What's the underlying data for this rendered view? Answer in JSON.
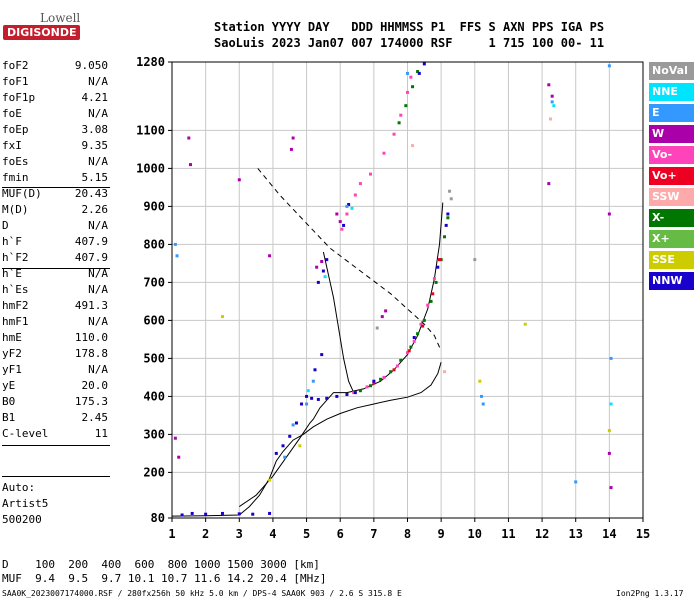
{
  "logo": {
    "lowell": "Lowell",
    "digisonde": "DIGISONDE"
  },
  "header": {
    "row1": "Station YYYY DAY   DDD HHMMSS P1  FFS S AXN PPS IGA PS",
    "row2": "SaoLuis 2023 Jan07 007 174000 RSF     1 715 100 00- 11"
  },
  "params": [
    {
      "name": "foF2",
      "value": "9.050"
    },
    {
      "name": "foF1",
      "value": "N/A"
    },
    {
      "name": "foF1p",
      "value": "4.21"
    },
    {
      "name": "foE",
      "value": "N/A"
    },
    {
      "name": "foEp",
      "value": "3.08"
    },
    {
      "name": "fxI",
      "value": "9.35"
    },
    {
      "name": "foEs",
      "value": "N/A"
    },
    {
      "name": "fmin",
      "value": "5.15"
    },
    {
      "name": "MUF(D)",
      "value": "20.43"
    },
    {
      "name": "M(D)",
      "value": "2.26"
    },
    {
      "name": "D",
      "value": "N/A"
    },
    {
      "name": "h`F",
      "value": "407.9"
    },
    {
      "name": "h`F2",
      "value": "407.9"
    },
    {
      "name": "h`E",
      "value": "N/A"
    },
    {
      "name": "h`Es",
      "value": "N/A"
    },
    {
      "name": "hmF2",
      "value": "491.3"
    },
    {
      "name": "hmF1",
      "value": "N/A"
    },
    {
      "name": "hmE",
      "value": "110.0"
    },
    {
      "name": "yF2",
      "value": "178.8"
    },
    {
      "name": "yF1",
      "value": "N/A"
    },
    {
      "name": "yE",
      "value": "20.0"
    },
    {
      "name": "B0",
      "value": "175.3"
    },
    {
      "name": "B1",
      "value": "2.45"
    },
    {
      "name": "C-level",
      "value": "11"
    }
  ],
  "autoscale": {
    "line1": "Auto:",
    "line2": "Artist5",
    "line3": "500200"
  },
  "legend": [
    {
      "label": "NoVal",
      "color": "#9a9a9a"
    },
    {
      "label": "NNE",
      "color": "#00e5ff"
    },
    {
      "label": "E",
      "color": "#3399ff"
    },
    {
      "label": "W",
      "color": "#aa00aa"
    },
    {
      "label": "Vo-",
      "color": "#ff44bb"
    },
    {
      "label": "Vo+",
      "color": "#ee0022"
    },
    {
      "label": "SSW",
      "color": "#ffaaaa"
    },
    {
      "label": "X-",
      "color": "#007700"
    },
    {
      "label": "X+",
      "color": "#66bb44"
    },
    {
      "label": "SSE",
      "color": "#cccc00"
    },
    {
      "label": "NNW",
      "color": "#1a00cc"
    }
  ],
  "footer": {
    "dist_line": "D    100  200  400  600  800 1000 1500 3000 [km]",
    "muf_line": "MUF  9.4  9.5  9.7 10.1 10.7 11.6 14.2 20.4 [MHz]",
    "file_line": "SAA0K_2023007174000.RSF / 280fx256h 50 kHz 5.0 km / DPS-4 SAA0K 903 / 2.6 S 315.8 E",
    "version": "Ion2Png 1.3.17"
  },
  "chart_data": {
    "type": "scatter",
    "xlim": [
      1,
      15
    ],
    "ylim": [
      80,
      1280
    ],
    "x_ticks": [
      "1",
      "2",
      "3",
      "4",
      "5",
      "6",
      "7",
      "8",
      "9",
      "10",
      "11",
      "12",
      "13",
      "14",
      "15"
    ],
    "y_ticks": [
      "80",
      "200",
      "300",
      "400",
      "500",
      "600",
      "700",
      "800",
      "900",
      "1000",
      "1100",
      "1280"
    ],
    "grid": true,
    "series": [
      {
        "name": "X-",
        "color": "#007700",
        "points": [
          [
            6.6,
            415
          ],
          [
            6.9,
            428
          ],
          [
            7.2,
            445
          ],
          [
            7.5,
            465
          ],
          [
            7.8,
            495
          ],
          [
            8.1,
            530
          ],
          [
            8.3,
            565
          ],
          [
            8.5,
            600
          ],
          [
            8.7,
            650
          ],
          [
            8.85,
            700
          ],
          [
            9.0,
            760
          ],
          [
            9.1,
            820
          ],
          [
            9.2,
            870
          ],
          [
            7.75,
            1120
          ],
          [
            7.95,
            1165
          ],
          [
            8.15,
            1215
          ],
          [
            8.3,
            1255
          ]
        ]
      },
      {
        "name": "Vo-",
        "color": "#ff44bb",
        "points": [
          [
            6.4,
            410
          ],
          [
            6.8,
            425
          ],
          [
            7.3,
            450
          ],
          [
            7.7,
            480
          ],
          [
            8.0,
            515
          ],
          [
            8.2,
            545
          ],
          [
            8.4,
            590
          ],
          [
            8.6,
            640
          ],
          [
            8.8,
            710
          ],
          [
            6.05,
            840
          ],
          [
            6.2,
            880
          ],
          [
            6.45,
            930
          ],
          [
            6.6,
            960
          ],
          [
            6.9,
            985
          ],
          [
            7.3,
            1040
          ],
          [
            7.6,
            1090
          ],
          [
            7.8,
            1140
          ],
          [
            8.0,
            1200
          ],
          [
            8.1,
            1240
          ]
        ]
      },
      {
        "name": "Vo+",
        "color": "#ee0022",
        "points": [
          [
            7.0,
            435
          ],
          [
            7.6,
            470
          ],
          [
            8.05,
            520
          ],
          [
            8.45,
            585
          ],
          [
            8.75,
            670
          ],
          [
            8.95,
            760
          ]
        ]
      },
      {
        "name": "NNW",
        "color": "#1a00cc",
        "points": [
          [
            1.3,
            88
          ],
          [
            1.6,
            92
          ],
          [
            2.0,
            90
          ],
          [
            2.5,
            92
          ],
          [
            3.0,
            91
          ],
          [
            3.4,
            90
          ],
          [
            3.9,
            92
          ],
          [
            4.1,
            250
          ],
          [
            4.3,
            270
          ],
          [
            4.5,
            295
          ],
          [
            4.7,
            330
          ],
          [
            4.85,
            380
          ],
          [
            5.0,
            400
          ],
          [
            5.15,
            395
          ],
          [
            5.35,
            392
          ],
          [
            5.6,
            395
          ],
          [
            5.9,
            400
          ],
          [
            6.2,
            405
          ],
          [
            6.45,
            410
          ],
          [
            7.0,
            440
          ],
          [
            8.2,
            555
          ],
          [
            8.9,
            740
          ],
          [
            9.15,
            850
          ],
          [
            9.2,
            880
          ],
          [
            5.25,
            470
          ],
          [
            5.45,
            510
          ],
          [
            5.35,
            700
          ],
          [
            5.5,
            730
          ],
          [
            5.6,
            760
          ],
          [
            6.1,
            850
          ],
          [
            6.25,
            905
          ],
          [
            8.35,
            1250
          ],
          [
            8.5,
            1275
          ]
        ]
      },
      {
        "name": "W",
        "color": "#aa00aa",
        "points": [
          [
            1.5,
            1080
          ],
          [
            1.55,
            1010
          ],
          [
            4.55,
            1050
          ],
          [
            4.6,
            1080
          ],
          [
            5.3,
            740
          ],
          [
            5.45,
            755
          ],
          [
            5.9,
            880
          ],
          [
            6.0,
            860
          ],
          [
            7.25,
            610
          ],
          [
            7.35,
            625
          ],
          [
            12.2,
            1220
          ],
          [
            12.3,
            1190
          ],
          [
            12.2,
            960
          ],
          [
            14.0,
            880
          ],
          [
            14.0,
            250
          ],
          [
            14.05,
            160
          ],
          [
            1.1,
            290
          ],
          [
            1.2,
            240
          ],
          [
            3.0,
            970
          ],
          [
            3.9,
            770
          ]
        ]
      },
      {
        "name": "E",
        "color": "#3399ff",
        "points": [
          [
            1.1,
            800
          ],
          [
            1.15,
            770
          ],
          [
            4.35,
            240
          ],
          [
            4.6,
            325
          ],
          [
            5.0,
            380
          ],
          [
            5.2,
            440
          ],
          [
            6.2,
            900
          ],
          [
            8.0,
            1250
          ],
          [
            12.3,
            1175
          ],
          [
            14.05,
            500
          ],
          [
            10.2,
            400
          ],
          [
            10.25,
            380
          ],
          [
            13.0,
            175
          ],
          [
            14.0,
            1270
          ]
        ]
      },
      {
        "name": "NNE",
        "color": "#00e5ff",
        "points": [
          [
            5.05,
            415
          ],
          [
            5.55,
            715
          ],
          [
            6.35,
            895
          ],
          [
            12.35,
            1165
          ],
          [
            14.05,
            380
          ]
        ]
      },
      {
        "name": "SSE",
        "color": "#cccc00",
        "points": [
          [
            4.8,
            270
          ],
          [
            3.9,
            180
          ],
          [
            11.5,
            590
          ],
          [
            14.0,
            310
          ],
          [
            10.15,
            440
          ],
          [
            2.5,
            610
          ]
        ]
      },
      {
        "name": "SSW",
        "color": "#ffaaaa",
        "points": [
          [
            8.15,
            1060
          ],
          [
            9.1,
            465
          ],
          [
            12.25,
            1130
          ]
        ]
      },
      {
        "name": "NoVal",
        "color": "#9a9a9a",
        "points": [
          [
            9.25,
            940
          ],
          [
            9.3,
            920
          ],
          [
            10.0,
            760
          ],
          [
            7.1,
            580
          ]
        ]
      }
    ],
    "profile_solid": [
      [
        1.0,
        85
      ],
      [
        2.0,
        86
      ],
      [
        3.0,
        88
      ],
      [
        3.3,
        110
      ],
      [
        3.6,
        140
      ],
      [
        3.9,
        185
      ],
      [
        4.1,
        230
      ],
      [
        4.3,
        255
      ],
      [
        4.6,
        285
      ],
      [
        4.9,
        300
      ],
      [
        5.2,
        320
      ],
      [
        5.6,
        340
      ],
      [
        6.0,
        355
      ],
      [
        6.5,
        370
      ],
      [
        7.0,
        380
      ],
      [
        7.5,
        390
      ],
      [
        8.0,
        398
      ],
      [
        8.4,
        410
      ],
      [
        8.7,
        430
      ],
      [
        8.9,
        460
      ],
      [
        9.0,
        490
      ]
    ],
    "profile_trace_solid": [
      [
        3.0,
        110
      ],
      [
        3.5,
        140
      ],
      [
        4.0,
        190
      ],
      [
        4.4,
        240
      ],
      [
        4.8,
        290
      ],
      [
        5.1,
        330
      ],
      [
        5.2,
        340
      ],
      [
        5.4,
        370
      ],
      [
        5.8,
        410
      ],
      [
        6.2,
        410
      ],
      [
        6.7,
        420
      ],
      [
        7.2,
        440
      ],
      [
        7.6,
        470
      ],
      [
        8.0,
        510
      ],
      [
        8.3,
        560
      ],
      [
        8.6,
        630
      ],
      [
        8.8,
        710
      ],
      [
        8.95,
        800
      ],
      [
        9.05,
        910
      ]
    ],
    "profile_spike": [
      [
        5.5,
        780
      ],
      [
        5.8,
        660
      ],
      [
        6.1,
        500
      ],
      [
        6.25,
        440
      ],
      [
        6.4,
        410
      ]
    ],
    "profile_dashed": [
      [
        3.55,
        1000
      ],
      [
        4.2,
        930
      ],
      [
        5.0,
        855
      ],
      [
        5.7,
        790
      ],
      [
        6.3,
        750
      ],
      [
        6.9,
        710
      ],
      [
        7.5,
        670
      ],
      [
        8.0,
        630
      ],
      [
        8.5,
        590
      ],
      [
        8.8,
        560
      ],
      [
        9.0,
        520
      ]
    ]
  }
}
